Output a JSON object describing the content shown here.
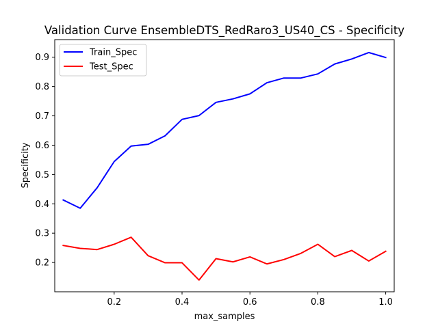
{
  "chart_data": {
    "type": "line",
    "title": "Validation Curve EnsembleDTS_RedRaro3_US40_CS - Specificity",
    "xlabel": "max_samples",
    "ylabel": "Specificity",
    "xlim": [
      0.025,
      1.025
    ],
    "ylim": [
      0.1,
      0.96
    ],
    "xticks": [
      0.2,
      0.4,
      0.6,
      0.8,
      1.0
    ],
    "xtick_labels": [
      "0.2",
      "0.4",
      "0.6",
      "0.8",
      "1.0"
    ],
    "yticks": [
      0.2,
      0.3,
      0.4,
      0.5,
      0.6,
      0.7,
      0.8,
      0.9
    ],
    "ytick_labels": [
      "0.2",
      "0.3",
      "0.4",
      "0.5",
      "0.6",
      "0.7",
      "0.8",
      "0.9"
    ],
    "grid": false,
    "legend": "top-left",
    "x": [
      0.05,
      0.1,
      0.15,
      0.2,
      0.25,
      0.3,
      0.35,
      0.4,
      0.45,
      0.5,
      0.55,
      0.6,
      0.65,
      0.7,
      0.75,
      0.8,
      0.85,
      0.9,
      0.95,
      1.0
    ],
    "series": [
      {
        "name": "Train_Spec",
        "color": "#0000ff",
        "values": [
          0.413,
          0.385,
          0.455,
          0.544,
          0.597,
          0.603,
          0.632,
          0.688,
          0.701,
          0.746,
          0.758,
          0.775,
          0.813,
          0.829,
          0.829,
          0.843,
          0.877,
          0.894,
          0.916,
          0.899
        ]
      },
      {
        "name": "Test_Spec",
        "color": "#ff0000",
        "values": [
          0.258,
          0.248,
          0.244,
          0.262,
          0.286,
          0.223,
          0.199,
          0.199,
          0.14,
          0.213,
          0.202,
          0.219,
          0.195,
          0.21,
          0.231,
          0.262,
          0.22,
          0.241,
          0.205,
          0.238
        ]
      }
    ]
  }
}
